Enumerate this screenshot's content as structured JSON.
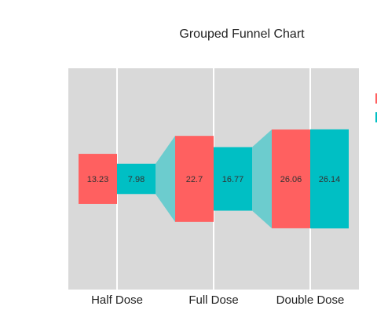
{
  "chart_data": {
    "type": "bar",
    "subtype": "grouped-funnel",
    "title": "Grouped Funnel Chart",
    "categories": [
      "Half Dose",
      "Full Dose",
      "Double Dose"
    ],
    "series": [
      {
        "values": [
          13.23,
          22.7,
          26.06
        ],
        "color": "#ff6060"
      },
      {
        "values": [
          7.98,
          16.77,
          26.14
        ],
        "color": "#00bfc4"
      }
    ],
    "panel_background": "#d9d9d9",
    "grid": true,
    "legend": "right (cropped)",
    "connector_opacity": 0.5
  }
}
